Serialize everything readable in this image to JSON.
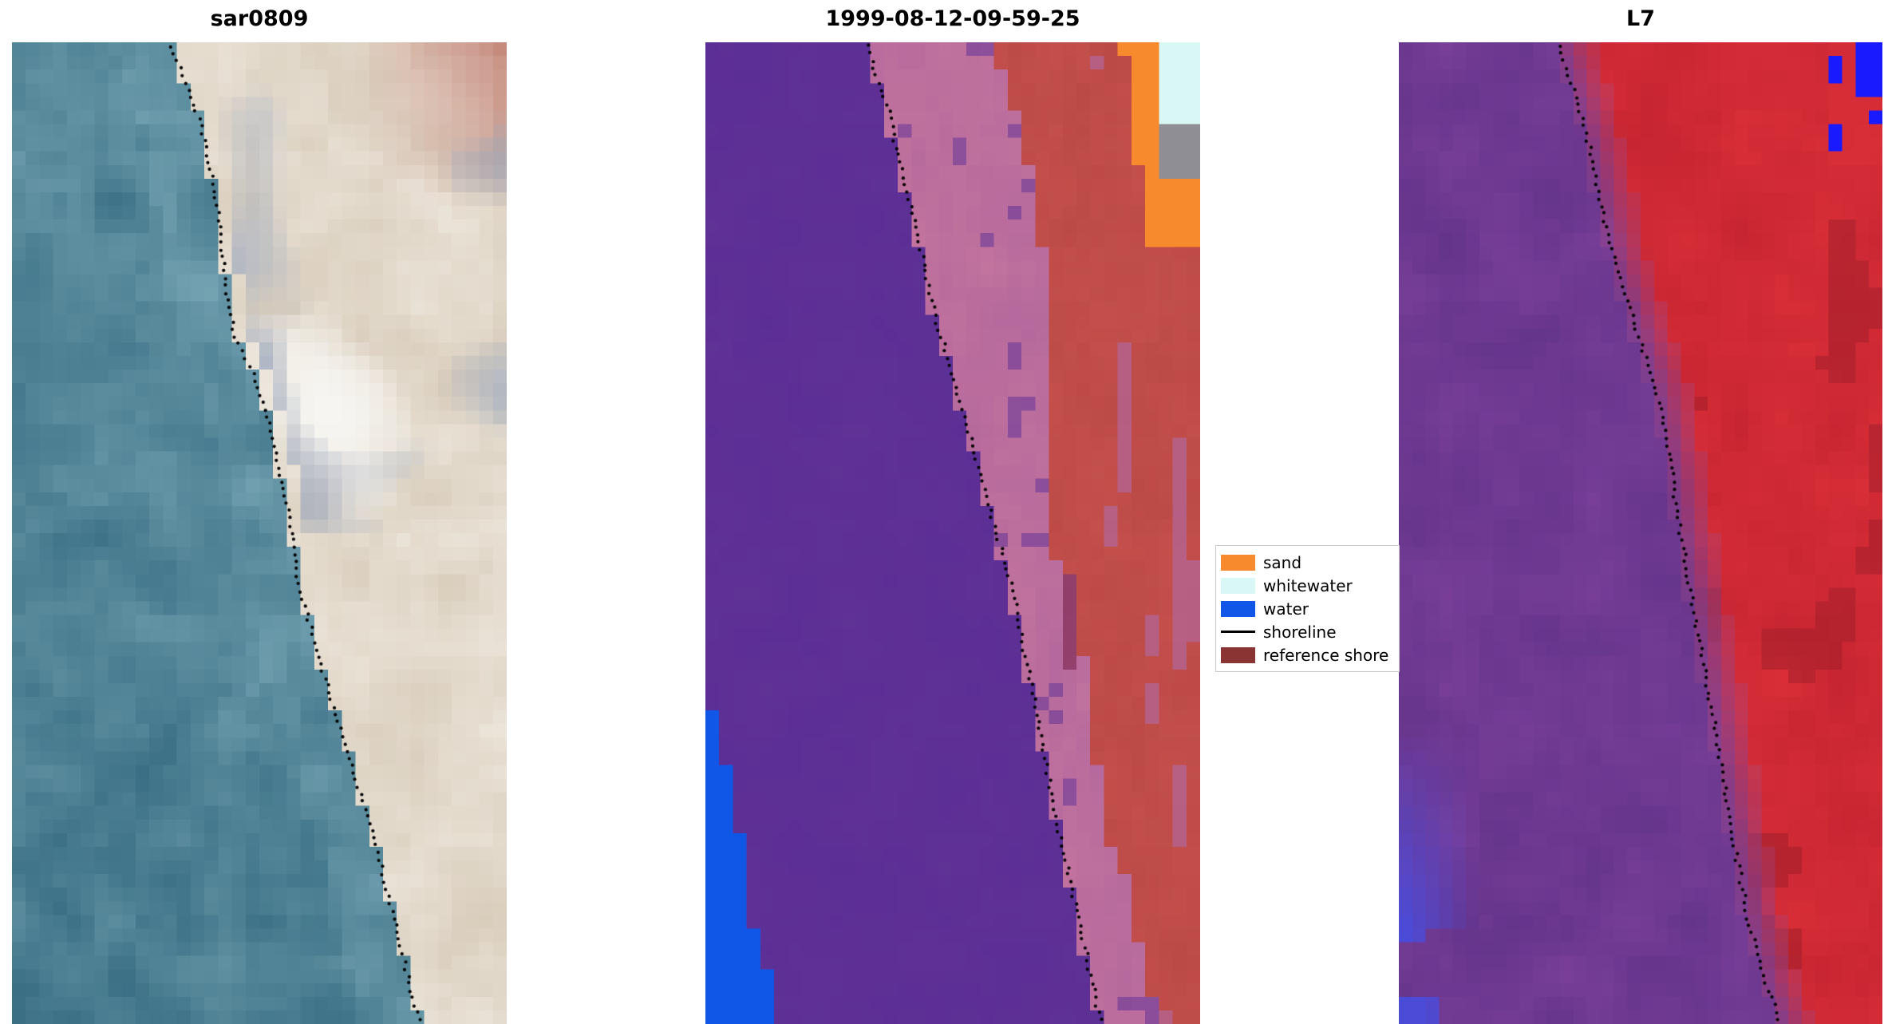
{
  "figure": {
    "background": "#ffffff",
    "panels": [
      {
        "id": "sar0809",
        "title": "sar0809",
        "style": "sar",
        "seed": 11,
        "colors": {
          "water_dark": "#2a6077",
          "water_light": "#7fadbb",
          "sand": "#d2c4b0",
          "sand_light": "#eee8de",
          "white_patch": "#f8f7f4",
          "red_top": "#b04f43",
          "blue_grey": "#93a0b8"
        },
        "shoreline_yx": [
          [
            0.0,
            0.315
          ],
          [
            0.05,
            0.36
          ],
          [
            0.1,
            0.39
          ],
          [
            0.17,
            0.415
          ],
          [
            0.24,
            0.43
          ],
          [
            0.3,
            0.45
          ],
          [
            0.34,
            0.49
          ],
          [
            0.4,
            0.525
          ],
          [
            0.47,
            0.555
          ],
          [
            0.54,
            0.575
          ],
          [
            0.6,
            0.605
          ],
          [
            0.66,
            0.64
          ],
          [
            0.72,
            0.675
          ],
          [
            0.8,
            0.725
          ],
          [
            0.88,
            0.765
          ],
          [
            0.94,
            0.795
          ],
          [
            1.0,
            0.825
          ]
        ]
      },
      {
        "id": "classified",
        "title": "1999-08-12-09-59-25",
        "style": "classified",
        "seed": 23,
        "colors": {
          "purple": "#5b2e96",
          "dark_purple": "#6f3f97",
          "pink": "#b3679c",
          "pink2": "#c4759e",
          "red": "#c5514d",
          "red_dark": "#b2423f",
          "orange": "#f78a2d",
          "cyan": "#d9f8f5",
          "grey": "#8e8e94",
          "blue": "#1057e8"
        },
        "shoreline_yx": [
          [
            0.0,
            0.325
          ],
          [
            0.07,
            0.37
          ],
          [
            0.14,
            0.4
          ],
          [
            0.21,
            0.435
          ],
          [
            0.28,
            0.465
          ],
          [
            0.34,
            0.5
          ],
          [
            0.4,
            0.535
          ],
          [
            0.46,
            0.565
          ],
          [
            0.52,
            0.6
          ],
          [
            0.58,
            0.63
          ],
          [
            0.64,
            0.652
          ],
          [
            0.7,
            0.675
          ],
          [
            0.78,
            0.705
          ],
          [
            0.86,
            0.74
          ],
          [
            0.93,
            0.77
          ],
          [
            1.0,
            0.8
          ]
        ]
      },
      {
        "id": "l7",
        "title": "L7",
        "style": "l7",
        "seed": 37,
        "colors": {
          "purple": "#7a3f99",
          "purple_dark": "#63338a",
          "red": "#c52431",
          "red_bright": "#da2f38",
          "red_dark": "#9e1e29",
          "mauve": "#a44f8e",
          "blue": "#4b4bd8",
          "blue_bright": "#1a1aff",
          "pale": "#e6e6f2"
        },
        "shoreline_yx": [
          [
            0.0,
            0.33
          ],
          [
            0.06,
            0.37
          ],
          [
            0.12,
            0.4
          ],
          [
            0.18,
            0.425
          ],
          [
            0.24,
            0.455
          ],
          [
            0.29,
            0.49
          ],
          [
            0.35,
            0.53
          ],
          [
            0.42,
            0.558
          ],
          [
            0.5,
            0.583
          ],
          [
            0.58,
            0.61
          ],
          [
            0.66,
            0.64
          ],
          [
            0.74,
            0.668
          ],
          [
            0.82,
            0.695
          ],
          [
            0.9,
            0.725
          ],
          [
            0.96,
            0.76
          ],
          [
            1.0,
            0.79
          ]
        ]
      }
    ],
    "legend": {
      "border_color": "#c9c9c9",
      "items": [
        {
          "key": "sand",
          "label": "sand",
          "swatch": "patch",
          "color": "#f78a2d"
        },
        {
          "key": "whitewater",
          "label": "whitewater",
          "swatch": "patch",
          "color": "#d9f8f5"
        },
        {
          "key": "water",
          "label": "water",
          "swatch": "patch",
          "color": "#1057e8"
        },
        {
          "key": "shoreline",
          "label": "shoreline",
          "swatch": "line",
          "color": "#000000"
        },
        {
          "key": "reference-shore",
          "label": "reference shore",
          "swatch": "patch",
          "color": "#8b3434"
        }
      ]
    }
  },
  "chart_data": {
    "type": "heatmap",
    "title": "",
    "panels": [
      {
        "title": "sar0809",
        "content": "SAR-derived RGB coastal image: teal-blue sea on the left, bright sandy beach band on the right with a white high-backscatter patch mid-image, reddish area in the top-right corner; dotted black detected shoreline runs diagonally from upper-left to lower-right."
      },
      {
        "title": "1999-08-12-09-59-25",
        "content": "Per-pixel classification map: large purple region (sea side) left of the shoreline, blue 'water' wedge in the lower-left, pink/mauve transition band, red 'reference shore' region on the right, orange 'sand' strip at the top-right edge, pale-cyan 'whitewater' patch in the top-right corner, small grey patch below it; dotted black shoreline follows the purple/pink boundary."
      },
      {
        "title": "L7",
        "content": "Landsat 7 false-colour image: purple water on the left, saturated red land on the right, scattered blue pixels in the lower-left corner and top-right corner; dotted black shoreline runs diagonally along the purple/red boundary."
      }
    ],
    "legend_entries": [
      {
        "label": "sand",
        "color": "#f78a2d"
      },
      {
        "label": "whitewater",
        "color": "#d9f8f5"
      },
      {
        "label": "water",
        "color": "#1057e8"
      },
      {
        "label": "shoreline",
        "color": "#000000"
      },
      {
        "label": "reference shore",
        "color": "#8b3434"
      }
    ],
    "shorelines_normalized_yx": {
      "sar0809": [
        [
          0.0,
          0.315
        ],
        [
          0.05,
          0.36
        ],
        [
          0.1,
          0.39
        ],
        [
          0.17,
          0.415
        ],
        [
          0.24,
          0.43
        ],
        [
          0.3,
          0.45
        ],
        [
          0.34,
          0.49
        ],
        [
          0.4,
          0.525
        ],
        [
          0.47,
          0.555
        ],
        [
          0.54,
          0.575
        ],
        [
          0.6,
          0.605
        ],
        [
          0.66,
          0.64
        ],
        [
          0.72,
          0.675
        ],
        [
          0.8,
          0.725
        ],
        [
          0.88,
          0.765
        ],
        [
          0.94,
          0.795
        ],
        [
          1.0,
          0.825
        ]
      ],
      "1999-08-12-09-59-25": [
        [
          0.0,
          0.325
        ],
        [
          0.07,
          0.37
        ],
        [
          0.14,
          0.4
        ],
        [
          0.21,
          0.435
        ],
        [
          0.28,
          0.465
        ],
        [
          0.34,
          0.5
        ],
        [
          0.4,
          0.535
        ],
        [
          0.46,
          0.565
        ],
        [
          0.52,
          0.6
        ],
        [
          0.58,
          0.63
        ],
        [
          0.64,
          0.652
        ],
        [
          0.7,
          0.675
        ],
        [
          0.78,
          0.705
        ],
        [
          0.86,
          0.74
        ],
        [
          0.93,
          0.77
        ],
        [
          1.0,
          0.8
        ]
      ],
      "L7": [
        [
          0.0,
          0.33
        ],
        [
          0.06,
          0.37
        ],
        [
          0.12,
          0.4
        ],
        [
          0.18,
          0.425
        ],
        [
          0.24,
          0.455
        ],
        [
          0.29,
          0.49
        ],
        [
          0.35,
          0.53
        ],
        [
          0.42,
          0.558
        ],
        [
          0.5,
          0.583
        ],
        [
          0.58,
          0.61
        ],
        [
          0.66,
          0.64
        ],
        [
          0.74,
          0.668
        ],
        [
          0.82,
          0.695
        ],
        [
          0.9,
          0.725
        ],
        [
          0.96,
          0.76
        ],
        [
          1.0,
          0.79
        ]
      ]
    }
  }
}
